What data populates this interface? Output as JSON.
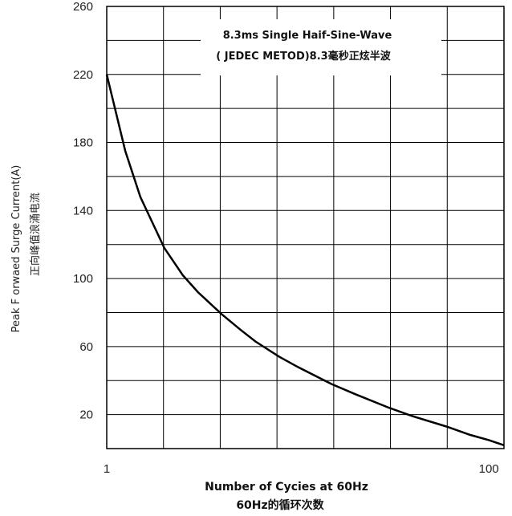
{
  "chart_data": {
    "type": "line",
    "x_scale": "log",
    "xlim": [
      1,
      120
    ],
    "ylim": [
      0,
      260
    ],
    "grid": true,
    "x_ticks": [
      1,
      100
    ],
    "x_tick_labels": [
      "1",
      "100"
    ],
    "y_ticks": [
      20,
      60,
      100,
      140,
      180,
      220,
      260
    ],
    "y_tick_labels": [
      "20",
      "60",
      "100",
      "140",
      "180",
      "220",
      "260"
    ],
    "xlabel": "Number of Cycies at 60Hz",
    "xlabel_cn": "60Hz的循环次数",
    "ylabel": "Peak F orwaed Surge Current(A)",
    "ylabel_cn": "正向峰值浪涌电流",
    "annotation_line1": "8.3ms Single Haif-Sine-Wave",
    "annotation_line2": "( JEDEC METOD)8.3毫秒正炫半波",
    "series": [
      {
        "x": [
          1,
          1.25,
          1.5,
          2,
          2.5,
          3,
          4,
          5,
          6,
          8,
          10,
          15,
          20,
          30,
          40,
          60,
          80,
          100,
          120
        ],
        "y": [
          220,
          175,
          148,
          118,
          102,
          92,
          79,
          70,
          63,
          54,
          48,
          38,
          32,
          24,
          19,
          13,
          8,
          5,
          2
        ]
      }
    ]
  }
}
